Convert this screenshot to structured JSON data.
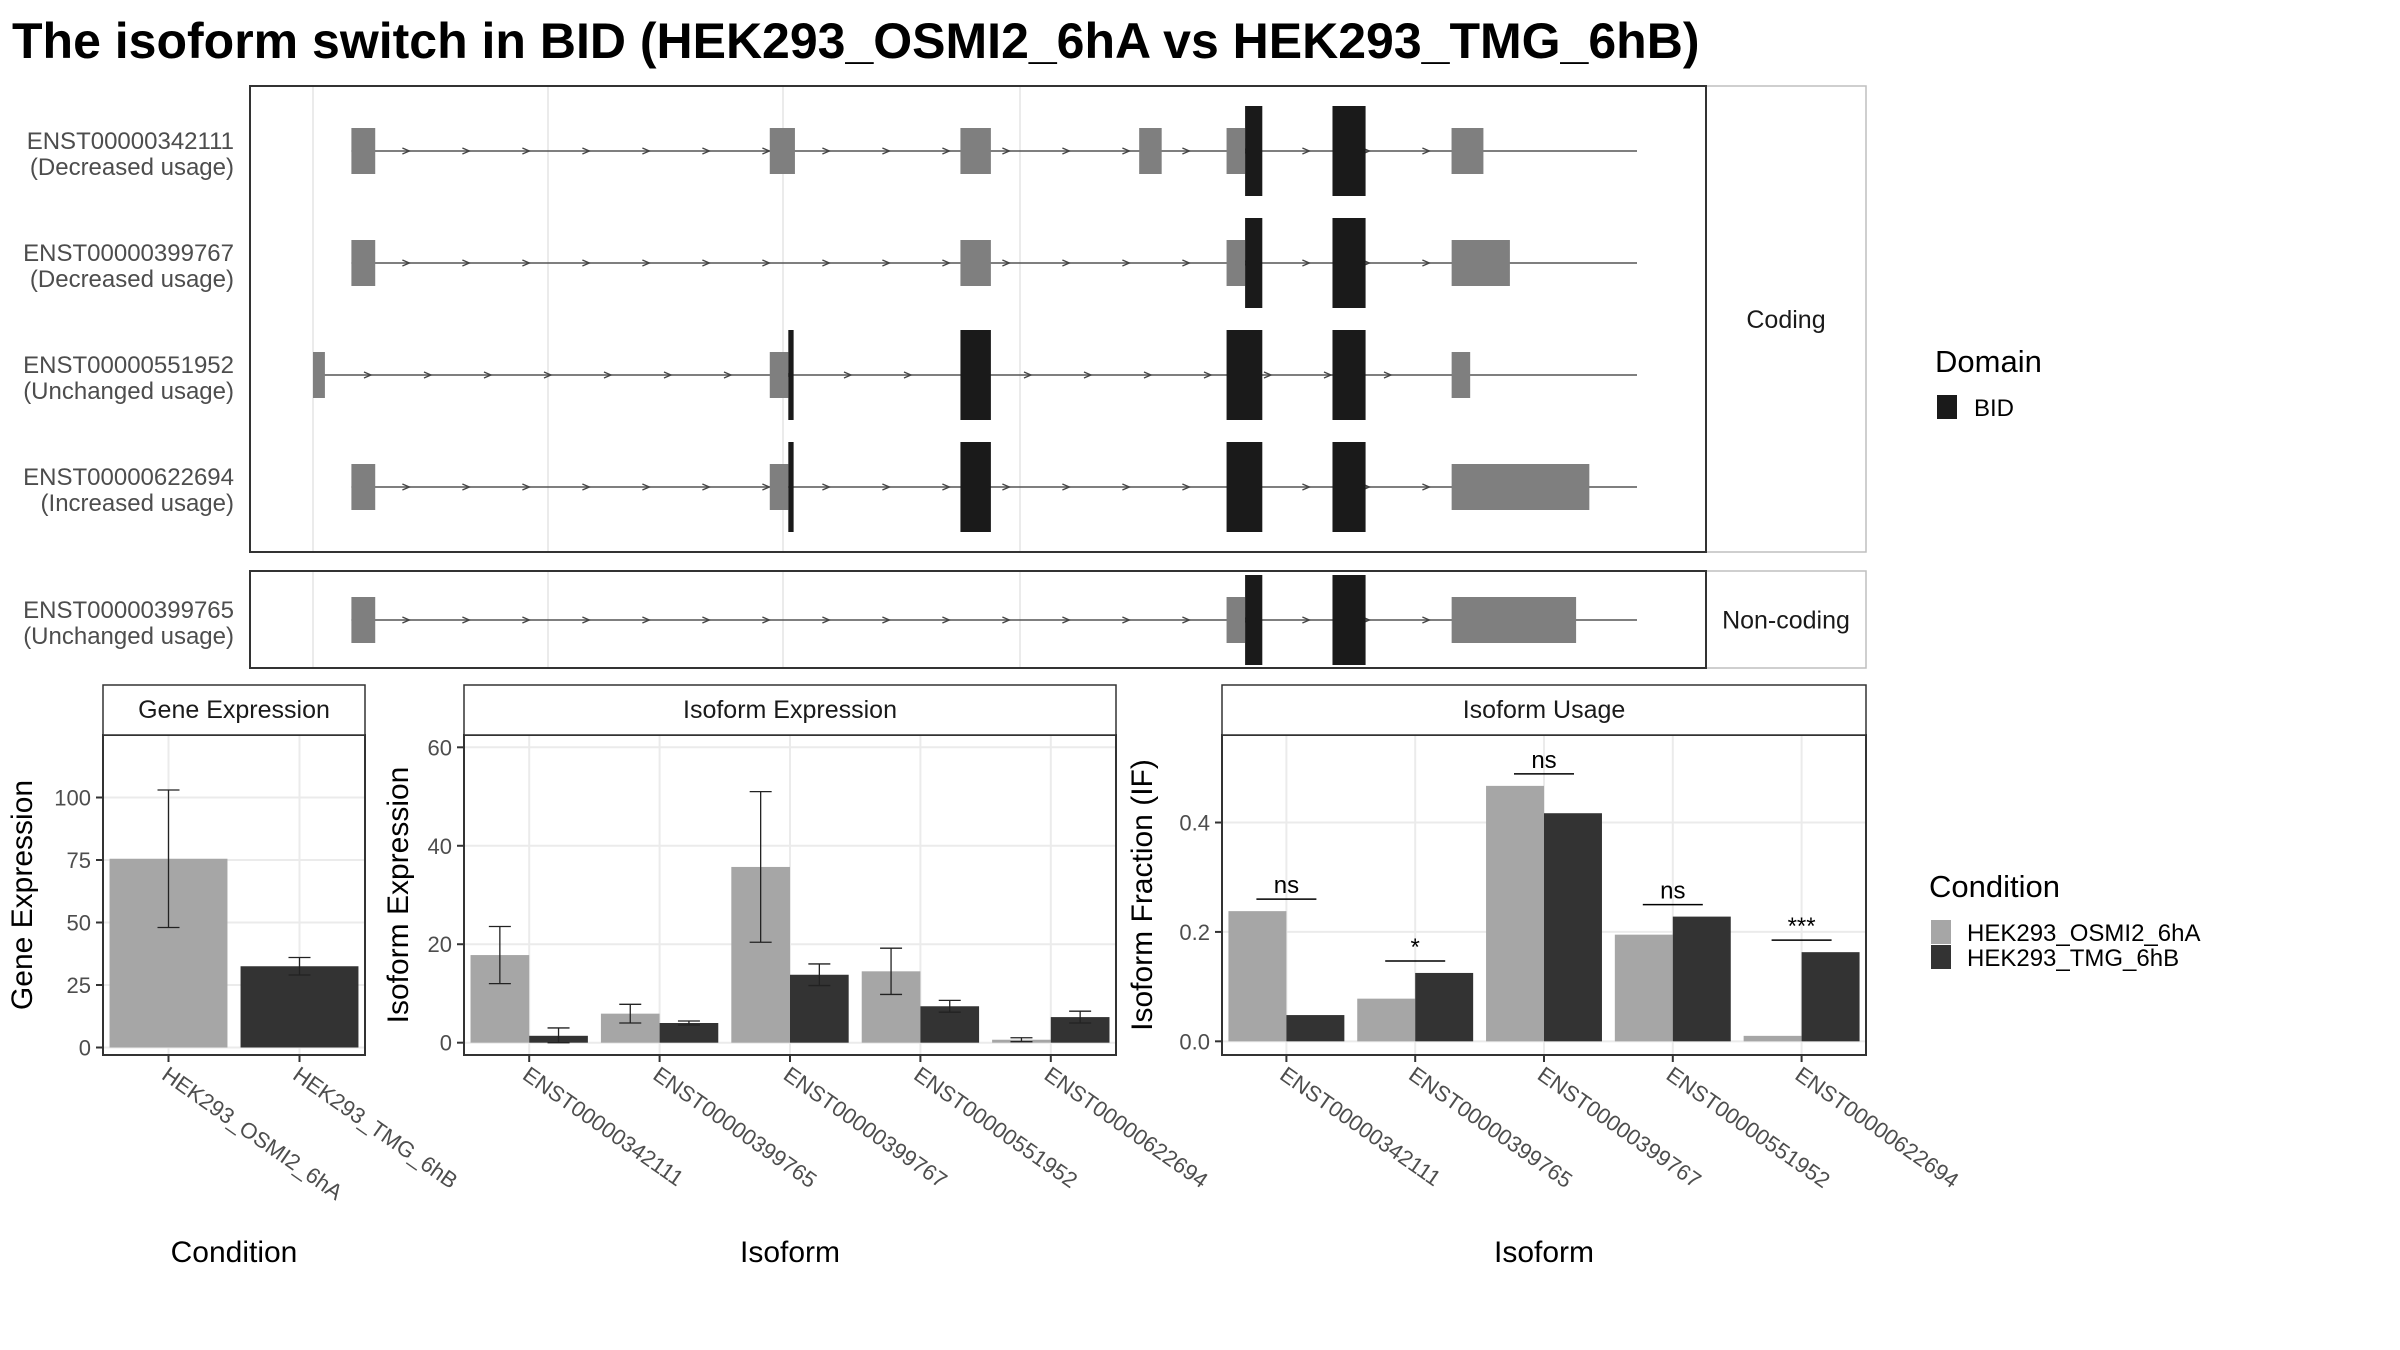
{
  "title": "The isoform switch in BID (HEK293_OSMI2_6hA vs HEK293_TMG_6hB)",
  "colors": {
    "condA": "#a6a6a6",
    "condB": "#333333",
    "domain": "#1a1a1a",
    "exon": "#7f7f7f",
    "grid": "#ebebeb",
    "frame": "#333333",
    "strip_border": "#bfbfbf"
  },
  "structure": {
    "facets": [
      {
        "label": "Coding",
        "rows": 4
      },
      {
        "label": "Non-coding",
        "rows": 1
      }
    ],
    "isoforms": [
      {
        "id": "ENST00000342111",
        "usage": "(Decreased usage)",
        "facet": "Coding",
        "span": [
          0.029,
          0.085
        ],
        "exons": [
          [
            0.029,
            0.047
          ],
          [
            0.345,
            0.364
          ],
          [
            0.489,
            0.512
          ],
          [
            0.624,
            0.641
          ],
          [
            0.69,
            0.704
          ],
          [
            0.86,
            0.86
          ],
          [
            0.86,
            0.884
          ]
        ],
        "domain": [
          [
            0.704,
            0.717
          ],
          [
            0.77,
            0.795
          ]
        ]
      },
      {
        "id": "ENST00000399767",
        "usage": "(Decreased usage)",
        "facet": "Coding",
        "exons": [
          [
            0.029,
            0.047
          ],
          [
            0.489,
            0.512
          ],
          [
            0.69,
            0.704
          ],
          [
            0.86,
            0.904
          ]
        ],
        "domain": [
          [
            0.704,
            0.717
          ],
          [
            0.77,
            0.795
          ]
        ]
      },
      {
        "id": "ENST00000551952",
        "usage": "(Unchanged usage)",
        "facet": "Coding",
        "exons": [
          [
            0.0,
            0.009
          ],
          [
            0.345,
            0.359
          ],
          [
            0.86,
            0.874
          ]
        ],
        "domain": [
          [
            0.359,
            0.363
          ],
          [
            0.489,
            0.512
          ],
          [
            0.69,
            0.717
          ],
          [
            0.77,
            0.795
          ]
        ]
      },
      {
        "id": "ENST00000622694",
        "usage": "(Increased usage)",
        "facet": "Coding",
        "exons": [
          [
            0.029,
            0.047
          ],
          [
            0.345,
            0.359
          ],
          [
            0.86,
            0.964
          ]
        ],
        "domain": [
          [
            0.359,
            0.363
          ],
          [
            0.489,
            0.512
          ],
          [
            0.69,
            0.717
          ],
          [
            0.77,
            0.795
          ]
        ]
      },
      {
        "id": "ENST00000399765",
        "usage": "(Unchanged usage)",
        "facet": "Non-coding",
        "exons": [
          [
            0.029,
            0.047
          ],
          [
            0.69,
            0.704
          ],
          [
            0.86,
            0.954
          ]
        ],
        "domain": [
          [
            0.704,
            0.717
          ],
          [
            0.77,
            0.795
          ]
        ]
      }
    ]
  },
  "legends": {
    "domain": {
      "title": "Domain",
      "items": [
        {
          "label": "BID",
          "color": "#1a1a1a"
        }
      ]
    },
    "condition": {
      "title": "Condition",
      "items": [
        {
          "label": "HEK293_OSMI2_6hA",
          "color": "#a6a6a6"
        },
        {
          "label": "HEK293_TMG_6hB",
          "color": "#333333"
        }
      ]
    }
  },
  "chart_data": [
    {
      "type": "bar",
      "title": "Gene Expression",
      "xlabel": "Condition",
      "ylabel": "Gene Expression",
      "categories": [
        "HEK293_OSMI2_6hA",
        "HEK293_TMG_6hB"
      ],
      "values": [
        75.5,
        32.5
      ],
      "error": [
        [
          48,
          103
        ],
        [
          29,
          36
        ]
      ],
      "ylim": [
        -3,
        125
      ],
      "yticks": [
        0,
        25,
        50,
        75,
        100
      ]
    },
    {
      "type": "bar",
      "title": "Isoform Expression",
      "xlabel": "Isoform",
      "ylabel": "Isoform Expression",
      "categories": [
        "ENST00000342111",
        "ENST00000399765",
        "ENST00000399767",
        "ENST00000551952",
        "ENST00000622694"
      ],
      "series": [
        {
          "name": "HEK293_OSMI2_6hA",
          "values": [
            17.8,
            5.9,
            35.7,
            14.5,
            0.6
          ],
          "error": [
            [
              12,
              23.6
            ],
            [
              4,
              7.8
            ],
            [
              20.4,
              51
            ],
            [
              9.8,
              19.2
            ],
            [
              0.2,
              1
            ]
          ]
        },
        {
          "name": "HEK293_TMG_6hB",
          "values": [
            1.4,
            4.0,
            13.8,
            7.4,
            5.2
          ],
          "error": [
            [
              0,
              3
            ],
            [
              3.6,
              4.4
            ],
            [
              11.6,
              16
            ],
            [
              6.2,
              8.6
            ],
            [
              4,
              6.4
            ]
          ]
        }
      ],
      "ylim": [
        -2.5,
        62.5
      ],
      "yticks": [
        0,
        20,
        40,
        60
      ]
    },
    {
      "type": "bar",
      "title": "Isoform Usage",
      "xlabel": "Isoform",
      "ylabel": "Isoform Fraction (IF)",
      "categories": [
        "ENST00000342111",
        "ENST00000399765",
        "ENST00000399767",
        "ENST00000551952",
        "ENST00000622694"
      ],
      "series": [
        {
          "name": "HEK293_OSMI2_6hA",
          "values": [
            0.238,
            0.078,
            0.467,
            0.195,
            0.01
          ]
        },
        {
          "name": "HEK293_TMG_6hB",
          "values": [
            0.048,
            0.125,
            0.417,
            0.228,
            0.163
          ]
        }
      ],
      "significance": [
        "ns",
        "*",
        "ns",
        "ns",
        "***"
      ],
      "ylim": [
        -0.025,
        0.56
      ],
      "yticks": [
        0.0,
        0.2,
        0.4
      ]
    }
  ]
}
